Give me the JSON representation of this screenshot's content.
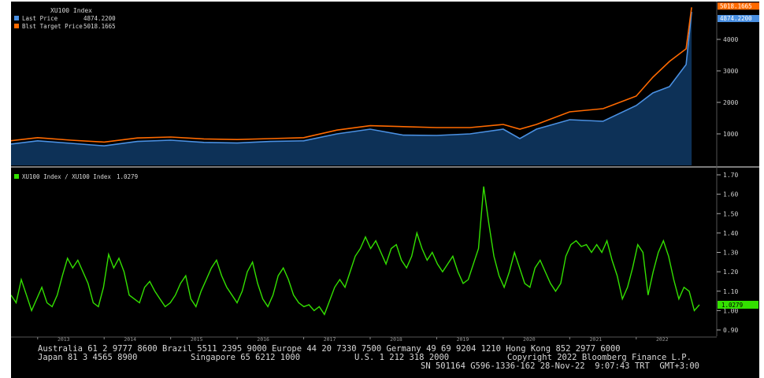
{
  "chart_data": [
    {
      "type": "area",
      "title": "XU100 Index",
      "legend_position": "top-left",
      "y_axis_side": "right",
      "ylim": [
        0,
        5000
      ],
      "yticks": [
        "1000",
        "2000",
        "3000",
        "4000"
      ],
      "x": [
        "2012-07",
        "2013-01",
        "2013-07",
        "2014-01",
        "2014-07",
        "2015-01",
        "2015-07",
        "2016-01",
        "2016-07",
        "2017-01",
        "2017-07",
        "2018-01",
        "2018-07",
        "2019-01",
        "2019-07",
        "2020-01",
        "2020-04",
        "2020-07",
        "2021-01",
        "2021-07",
        "2022-01",
        "2022-04",
        "2022-07",
        "2022-10",
        "2022-11"
      ],
      "series": [
        {
          "name": "Last Price",
          "label_value": "4874.2200",
          "color": "#4a90e2",
          "values": [
            650,
            780,
            700,
            620,
            760,
            800,
            730,
            710,
            760,
            780,
            1000,
            1150,
            960,
            950,
            1000,
            1150,
            850,
            1150,
            1450,
            1400,
            1900,
            2300,
            2500,
            3200,
            4874
          ]
        },
        {
          "name": "Blst Target Price",
          "label_value": "5018.1665",
          "color": "#ff6a00",
          "values": [
            760,
            880,
            800,
            740,
            870,
            900,
            840,
            820,
            850,
            880,
            1120,
            1260,
            1230,
            1200,
            1200,
            1300,
            1150,
            1300,
            1700,
            1800,
            2200,
            2800,
            3300,
            3700,
            5018
          ]
        }
      ],
      "xticks": [
        "2013",
        "2014",
        "2015",
        "2016",
        "2017",
        "2018",
        "2019",
        "2020",
        "2021",
        "2022"
      ]
    },
    {
      "type": "line",
      "title": "XU100 Index / XU100 Index",
      "legend_position": "top-left",
      "y_axis_side": "right",
      "ylim": [
        0.9,
        1.7
      ],
      "yticks": [
        "1.70",
        "1.60",
        "1.50",
        "1.40",
        "1.30",
        "1.20",
        "1.10",
        "1.00",
        "0.90"
      ],
      "series": [
        {
          "name": "XU100 Index / XU100 Index",
          "label_value": "1.0279",
          "color": "#33e000",
          "values": [
            1.08,
            1.04,
            1.16,
            1.08,
            1.0,
            1.06,
            1.12,
            1.04,
            1.02,
            1.08,
            1.18,
            1.27,
            1.22,
            1.26,
            1.2,
            1.14,
            1.04,
            1.02,
            1.12,
            1.29,
            1.22,
            1.27,
            1.2,
            1.08,
            1.06,
            1.04,
            1.12,
            1.15,
            1.1,
            1.06,
            1.02,
            1.04,
            1.08,
            1.14,
            1.18,
            1.06,
            1.02,
            1.1,
            1.16,
            1.22,
            1.26,
            1.18,
            1.12,
            1.08,
            1.04,
            1.1,
            1.2,
            1.25,
            1.14,
            1.06,
            1.02,
            1.08,
            1.18,
            1.22,
            1.16,
            1.08,
            1.04,
            1.02,
            1.03,
            1.0,
            1.02,
            0.98,
            1.05,
            1.12,
            1.16,
            1.12,
            1.2,
            1.28,
            1.32,
            1.38,
            1.32,
            1.36,
            1.3,
            1.24,
            1.32,
            1.34,
            1.26,
            1.22,
            1.28,
            1.4,
            1.32,
            1.26,
            1.3,
            1.24,
            1.2,
            1.24,
            1.28,
            1.2,
            1.14,
            1.16,
            1.24,
            1.32,
            1.64,
            1.45,
            1.28,
            1.18,
            1.12,
            1.2,
            1.3,
            1.22,
            1.14,
            1.12,
            1.22,
            1.26,
            1.2,
            1.14,
            1.1,
            1.14,
            1.28,
            1.34,
            1.36,
            1.33,
            1.34,
            1.3,
            1.34,
            1.3,
            1.36,
            1.26,
            1.18,
            1.06,
            1.12,
            1.22,
            1.34,
            1.3,
            1.08,
            1.2,
            1.3,
            1.36,
            1.28,
            1.16,
            1.06,
            1.12,
            1.1,
            1.0,
            1.03
          ]
        }
      ]
    }
  ],
  "footer": {
    "line1": "Australia 61 2 9777 8600 Brazil 5511 2395 9000 Europe 44 20 7330 7500 Germany 49 69 9204 1210 Hong Kong 852 2977 6000",
    "line2a": "Japan 81 3 4565 8900",
    "line2b": "Singapore 65 6212 1000",
    "line2c": "U.S. 1 212 318 2000",
    "line2d": "Copyright 2022 Bloomberg Finance L.P.",
    "line3": "SN 501164 G596-1336-162 28-Nov-22  9:07:43 TRT  GMT+3:00"
  }
}
